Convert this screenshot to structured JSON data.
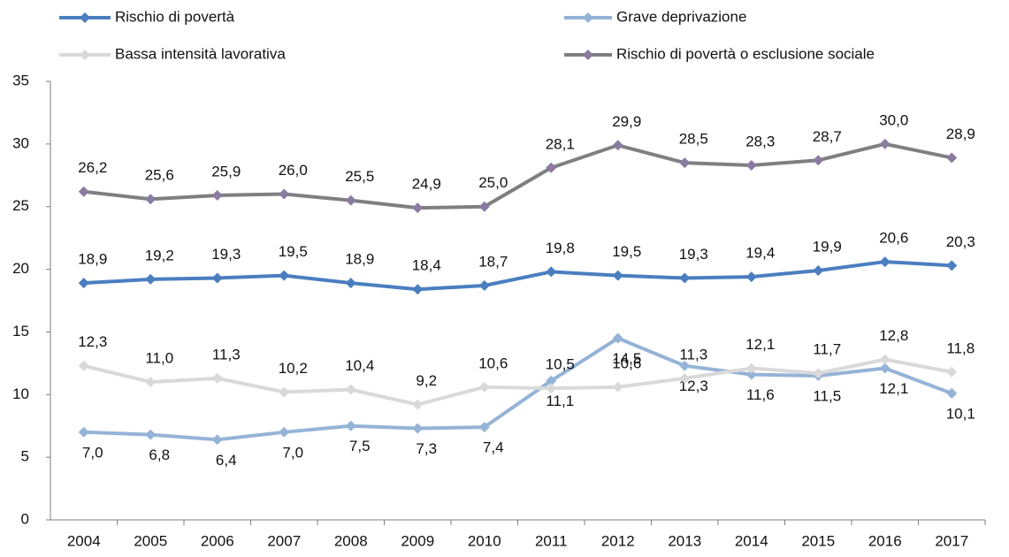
{
  "chart_data": {
    "type": "line",
    "categories": [
      "2004",
      "2005",
      "2006",
      "2007",
      "2008",
      "2009",
      "2010",
      "2011",
      "2012",
      "2013",
      "2014",
      "2015",
      "2016",
      "2017"
    ],
    "ylim": [
      0,
      35
    ],
    "yticks": [
      0,
      5,
      10,
      15,
      20,
      25,
      30,
      35
    ],
    "grid": false,
    "series": [
      {
        "name": "Rischio di povertà",
        "color": "#4a7ebf",
        "values": [
          18.9,
          19.2,
          19.3,
          19.5,
          18.9,
          18.4,
          18.7,
          19.8,
          19.5,
          19.3,
          19.4,
          19.9,
          20.6,
          20.3
        ],
        "value_labels": [
          "18,9",
          "19,2",
          "19,3",
          "19,5",
          "18,9",
          "18,4",
          "18,7",
          "19,8",
          "19,5",
          "19,3",
          "19,4",
          "19,9",
          "20,6",
          "20,3"
        ]
      },
      {
        "name": "Grave deprivazione",
        "color": "#95b3d7",
        "values": [
          7.0,
          6.8,
          6.4,
          7.0,
          7.5,
          7.3,
          7.4,
          11.1,
          14.5,
          12.3,
          11.6,
          11.5,
          12.1,
          10.1
        ],
        "value_labels": [
          "7,0",
          "6,8",
          "6,4",
          "7,0",
          "7,5",
          "7,3",
          "7,4",
          "11,1",
          "14,5",
          "12,3",
          "11,6",
          "11,5",
          "12,1",
          "10,1"
        ]
      },
      {
        "name": "Bassa intensità lavorativa",
        "color": "#d9d9d9",
        "values": [
          12.3,
          11.0,
          11.3,
          10.2,
          10.4,
          9.2,
          10.6,
          10.5,
          10.6,
          11.3,
          12.1,
          11.7,
          12.8,
          11.8
        ],
        "value_labels": [
          "12,3",
          "11,0",
          "11,3",
          "10,2",
          "10,4",
          "9,2",
          "10,6",
          "10,5",
          "10,6",
          "11,3",
          "12,1",
          "11,7",
          "12,8",
          "11,8"
        ]
      },
      {
        "name": "Rischio di povertà o esclusione sociale",
        "color": "#7f7f7f",
        "marker_color": "#8a7ca0",
        "values": [
          26.2,
          25.6,
          25.9,
          26.0,
          25.5,
          24.9,
          25.0,
          28.1,
          29.9,
          28.5,
          28.3,
          28.7,
          30.0,
          28.9
        ],
        "value_labels": [
          "26,2",
          "25,6",
          "25,9",
          "26,0",
          "25,5",
          "24,9",
          "25,0",
          "28,1",
          "29,9",
          "28,5",
          "28,3",
          "28,7",
          "30,0",
          "28,9"
        ]
      }
    ]
  }
}
